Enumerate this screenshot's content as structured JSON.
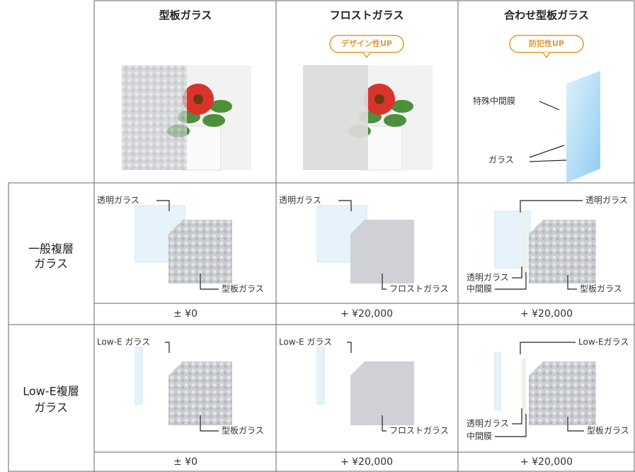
{
  "header": {
    "columns": [
      {
        "title": "型板ガラス"
      },
      {
        "title": "フロストガラス",
        "badge": "デザイン性UP"
      },
      {
        "title": "合わせ型板ガラス",
        "badge": "防犯性UP",
        "callouts": [
          "特殊中間膜",
          "ガラス"
        ]
      }
    ]
  },
  "rows": [
    {
      "label": [
        "一般複層",
        "ガラス"
      ],
      "cells": [
        {
          "callouts": [
            "透明ガラス",
            "型板ガラス"
          ],
          "price": "± ¥0"
        },
        {
          "callouts": [
            "透明ガラス",
            "フロストガラス"
          ],
          "price": "+ ¥20,000"
        },
        {
          "callouts": [
            "透明ガラス",
            "透明ガラス",
            "中間膜",
            "型板ガラス"
          ],
          "price": "+ ¥20,000"
        }
      ]
    },
    {
      "label": [
        "Low-E複層",
        "ガラス"
      ],
      "cells": [
        {
          "callouts": [
            "Low-E ガラス",
            "型板ガラス"
          ],
          "price": "± ¥0"
        },
        {
          "callouts": [
            "Low-E ガラス",
            "フロストガラス"
          ],
          "price": "+ ¥20,000"
        },
        {
          "callouts": [
            "Low-Eガラス",
            "透明ガラス",
            "中間膜",
            "型板ガラス"
          ],
          "price": "+ ¥20,000"
        }
      ]
    }
  ]
}
